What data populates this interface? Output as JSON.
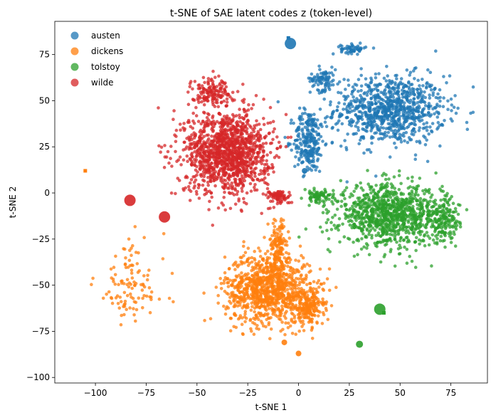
{
  "chart_data": {
    "type": "scatter",
    "title": "t-SNE of SAE latent codes z (token-level)",
    "xlabel": "t-SNE 1",
    "ylabel": "t-SNE 2",
    "xlim": [
      -120,
      93
    ],
    "ylim": [
      -103,
      93
    ],
    "xticks": [
      -100,
      -75,
      -50,
      -25,
      0,
      25,
      50,
      75
    ],
    "yticks": [
      -100,
      -75,
      -50,
      -25,
      0,
      25,
      50,
      75
    ],
    "xtick_labels": [
      "−100",
      "−75",
      "−50",
      "−25",
      "0",
      "25",
      "50",
      "75"
    ],
    "ytick_labels": [
      "−100",
      "−75",
      "−50",
      "−25",
      "0",
      "25",
      "50",
      "75"
    ],
    "legend_position": "top-left",
    "series": [
      {
        "name": "austen",
        "color": "#1f77b4",
        "clusters": [
          {
            "cx": 45,
            "cy": 45,
            "sx": 22,
            "sy": 15,
            "n": 900
          },
          {
            "cx": 5,
            "cy": 28,
            "sx": 6,
            "sy": 14,
            "n": 250
          },
          {
            "cx": 12,
            "cy": 62,
            "sx": 5,
            "sy": 5,
            "n": 80
          },
          {
            "cx": 27,
            "cy": 78,
            "sx": 5,
            "sy": 2,
            "n": 60
          }
        ],
        "blobs": [
          {
            "x": -4,
            "y": 81,
            "size": 8
          },
          {
            "x": 3,
            "y": 12,
            "size": 4
          }
        ],
        "squares": [
          {
            "x": -5,
            "y": 84
          }
        ]
      },
      {
        "name": "dickens",
        "color": "#ff7f0e",
        "clusters": [
          {
            "cx": -15,
            "cy": -52,
            "sx": 17,
            "sy": 15,
            "n": 1000
          },
          {
            "cx": 5,
            "cy": -62,
            "sx": 6,
            "sy": 8,
            "n": 200
          },
          {
            "cx": -10,
            "cy": -30,
            "sx": 4,
            "sy": 12,
            "n": 150
          },
          {
            "cx": -83,
            "cy": -50,
            "sx": 14,
            "sy": 20,
            "n": 110
          }
        ],
        "blobs": [
          {
            "x": -7,
            "y": -81,
            "size": 4
          },
          {
            "x": 0,
            "y": -87,
            "size": 4
          }
        ],
        "squares": [
          {
            "x": -105,
            "y": 12
          }
        ]
      },
      {
        "name": "tolstoy",
        "color": "#2ca02c",
        "clusters": [
          {
            "cx": 45,
            "cy": -12,
            "sx": 20,
            "sy": 13,
            "n": 1000
          },
          {
            "cx": 72,
            "cy": -15,
            "sx": 6,
            "sy": 10,
            "n": 150
          },
          {
            "cx": 10,
            "cy": -2,
            "sx": 6,
            "sy": 3,
            "n": 80
          }
        ],
        "blobs": [
          {
            "x": 40,
            "y": -63,
            "size": 8
          },
          {
            "x": 30,
            "y": -82,
            "size": 5
          }
        ],
        "squares": [
          {
            "x": 42,
            "y": -65
          }
        ]
      },
      {
        "name": "wilde",
        "color": "#d62728",
        "clusters": [
          {
            "cx": -35,
            "cy": 22,
            "sx": 17,
            "sy": 18,
            "n": 1300
          },
          {
            "cx": -43,
            "cy": 55,
            "sx": 8,
            "sy": 6,
            "n": 150
          },
          {
            "cx": -10,
            "cy": -2,
            "sx": 5,
            "sy": 3,
            "n": 80
          }
        ],
        "blobs": [
          {
            "x": -83,
            "y": -4,
            "size": 8
          },
          {
            "x": -66,
            "y": -13,
            "size": 8
          }
        ],
        "squares": []
      }
    ]
  }
}
